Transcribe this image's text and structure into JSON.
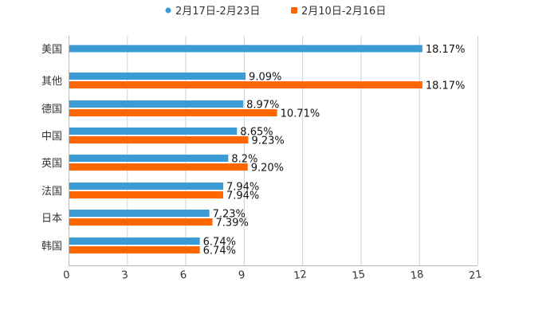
{
  "chart_data": {
    "type": "bar",
    "orientation": "horizontal",
    "categories": [
      "美国",
      "其他",
      "德国",
      "中国",
      "英国",
      "法国",
      "日本",
      "韩国"
    ],
    "series": [
      {
        "name": "2月17日-2月23日",
        "color": "#3a9bd5",
        "values": [
          18.17,
          9.09,
          8.97,
          8.65,
          8.2,
          7.94,
          7.23,
          6.74
        ],
        "labels": [
          "18.17%",
          "9.09%",
          "8.97%",
          "8.65%",
          "8.2%",
          "7.94%",
          "7.23%",
          "6.74%"
        ]
      },
      {
        "name": "2月10日-2月16日",
        "color": "#ff6600",
        "values": [
          null,
          18.17,
          10.71,
          9.23,
          9.2,
          7.94,
          7.39,
          6.74
        ],
        "labels": [
          null,
          "18.17%",
          "10.71%",
          "9.23%",
          "9.20%",
          "7.94%",
          "7.39%",
          "6.74%"
        ]
      }
    ],
    "xlim": [
      0,
      21
    ],
    "xticks": [
      0,
      3,
      6,
      9,
      12,
      15,
      18,
      21
    ],
    "title": "",
    "xlabel": "",
    "ylabel": "",
    "grid": true,
    "legend_position": "top-center"
  }
}
